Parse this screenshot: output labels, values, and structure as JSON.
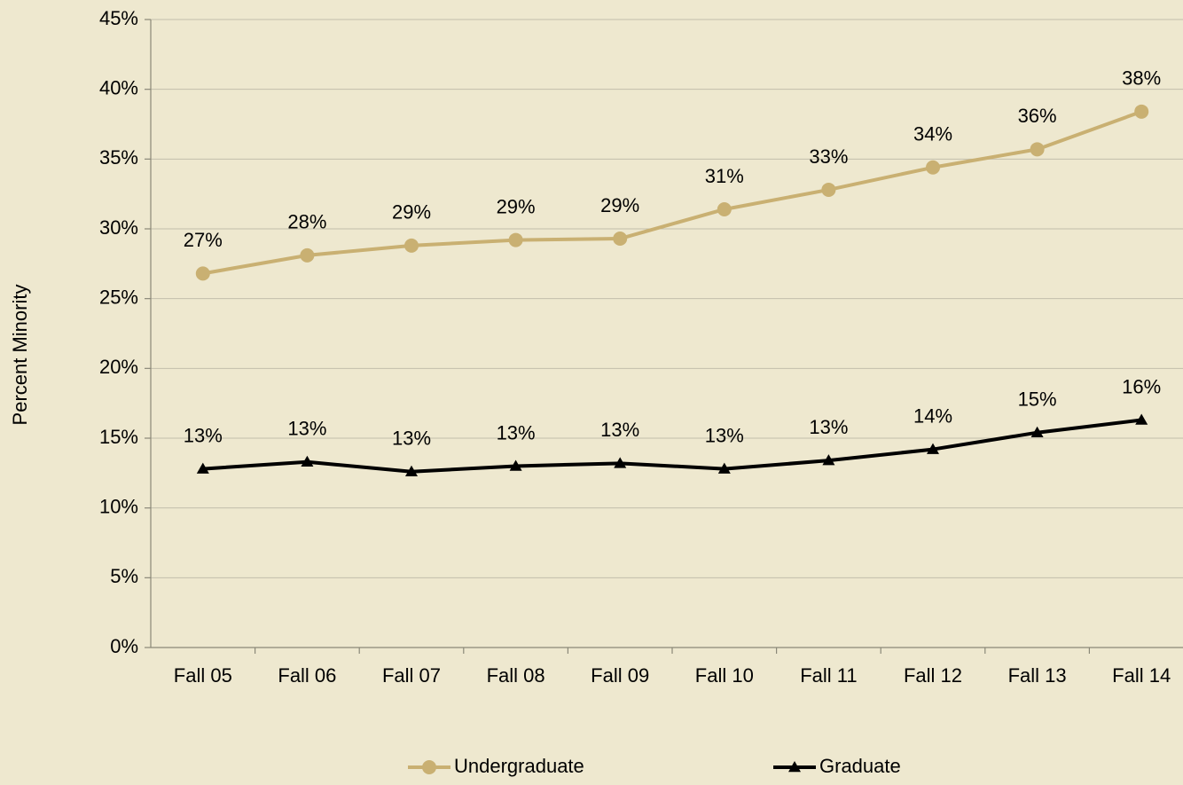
{
  "chart_data": {
    "type": "line",
    "y_label": "Percent Minority",
    "categories": [
      "Fall 05",
      "Fall 06",
      "Fall 07",
      "Fall 08",
      "Fall 09",
      "Fall 10",
      "Fall 11",
      "Fall 12",
      "Fall 13",
      "Fall 14"
    ],
    "series": [
      {
        "name": "Undergraduate",
        "color": "#c9b072",
        "marker": "circle",
        "values": [
          26.8,
          28.1,
          28.8,
          29.2,
          29.3,
          31.4,
          32.8,
          34.4,
          35.7,
          38.4
        ],
        "value_labels": [
          "27%",
          "28%",
          "29%",
          "29%",
          "29%",
          "31%",
          "33%",
          "34%",
          "36%",
          "38%"
        ]
      },
      {
        "name": "Graduate",
        "color": "#000000",
        "marker": "triangle",
        "values": [
          12.8,
          13.3,
          12.6,
          13.0,
          13.2,
          12.8,
          13.4,
          14.2,
          15.4,
          16.3
        ],
        "value_labels": [
          "13%",
          "13%",
          "13%",
          "13%",
          "13%",
          "13%",
          "13%",
          "14%",
          "15%",
          "16%"
        ]
      }
    ],
    "ylim": [
      0,
      45
    ],
    "yticks": [
      {
        "value": 0,
        "label": "0%"
      },
      {
        "value": 5,
        "label": "5%"
      },
      {
        "value": 10,
        "label": "10%"
      },
      {
        "value": 15,
        "label": "15%"
      },
      {
        "value": 20,
        "label": "20%"
      },
      {
        "value": 25,
        "label": "25%"
      },
      {
        "value": 30,
        "label": "30%"
      },
      {
        "value": 35,
        "label": "35%"
      },
      {
        "value": 40,
        "label": "40%"
      },
      {
        "value": 45,
        "label": "45%"
      }
    ],
    "grid": true,
    "legend": "bottom"
  }
}
